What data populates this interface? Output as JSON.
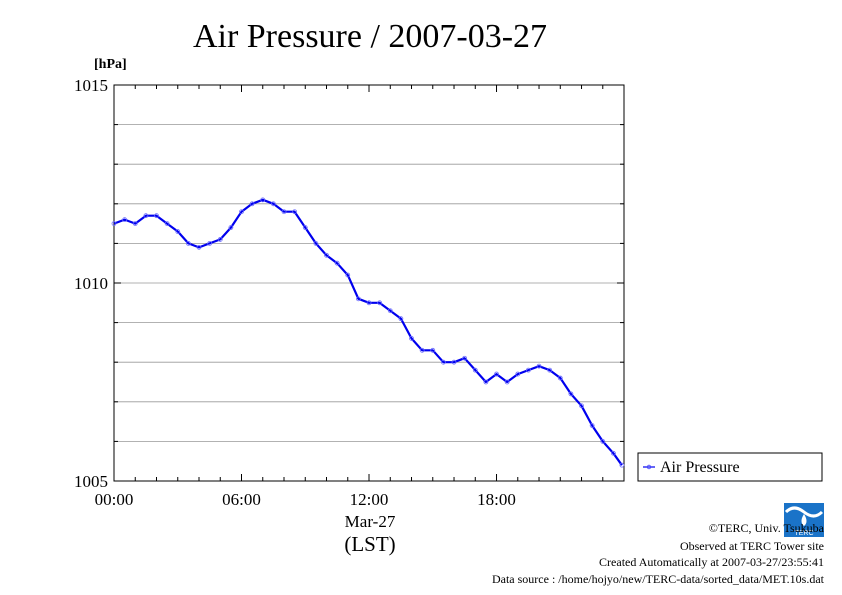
{
  "chart_data": {
    "type": "line",
    "title": "Air Pressure / 2007-03-27",
    "ylabel": "[hPa]",
    "xlabel": "(LST)",
    "x_date_label": "Mar-27",
    "ylim": [
      1005,
      1015
    ],
    "yticks": [
      1005,
      1010,
      1015
    ],
    "ytick_labels": [
      "1005",
      "1010",
      "1015"
    ],
    "xlim_hours": [
      0,
      23.9986
    ],
    "xticks_hours": [
      0,
      6,
      12,
      18
    ],
    "xtick_labels": [
      "00:00",
      "06:00",
      "12:00",
      "18:00"
    ],
    "grid": true,
    "legend_position": "right",
    "color": "#0000ee",
    "series": [
      {
        "name": "Air Pressure",
        "x": [
          0,
          0.5,
          1,
          1.5,
          2,
          2.5,
          3,
          3.5,
          4,
          4.5,
          5,
          5.5,
          6,
          6.5,
          7,
          7.5,
          8,
          8.5,
          9,
          9.5,
          10,
          10.5,
          11,
          11.5,
          12,
          12.5,
          13,
          13.5,
          14,
          14.5,
          15,
          15.5,
          16,
          16.5,
          17,
          17.5,
          18,
          18.5,
          19,
          19.5,
          20,
          20.5,
          21,
          21.5,
          22,
          22.5,
          23,
          23.5,
          23.9
        ],
        "y": [
          1011.5,
          1011.6,
          1011.5,
          1011.7,
          1011.7,
          1011.5,
          1011.3,
          1011.0,
          1010.9,
          1011.0,
          1011.1,
          1011.4,
          1011.8,
          1012.0,
          1012.1,
          1012.0,
          1011.8,
          1011.8,
          1011.4,
          1011.0,
          1010.7,
          1010.5,
          1010.2,
          1009.6,
          1009.5,
          1009.5,
          1009.3,
          1009.1,
          1008.6,
          1008.3,
          1008.3,
          1008.0,
          1008.0,
          1008.1,
          1007.8,
          1007.5,
          1007.7,
          1007.5,
          1007.7,
          1007.8,
          1007.9,
          1007.8,
          1007.6,
          1007.2,
          1006.9,
          1006.4,
          1006.0,
          1005.7,
          1005.4
        ]
      }
    ]
  },
  "footer": {
    "copyright": "©TERC, Univ. Tsukuba",
    "observed": "Observed at TERC Tower site",
    "created": "Created Automatically at 2007-03-27/23:55:41",
    "source": "Data source : /home/hojyo/new/TERC-data/sorted_data/MET.10s.dat"
  },
  "logo_text": "TERC"
}
